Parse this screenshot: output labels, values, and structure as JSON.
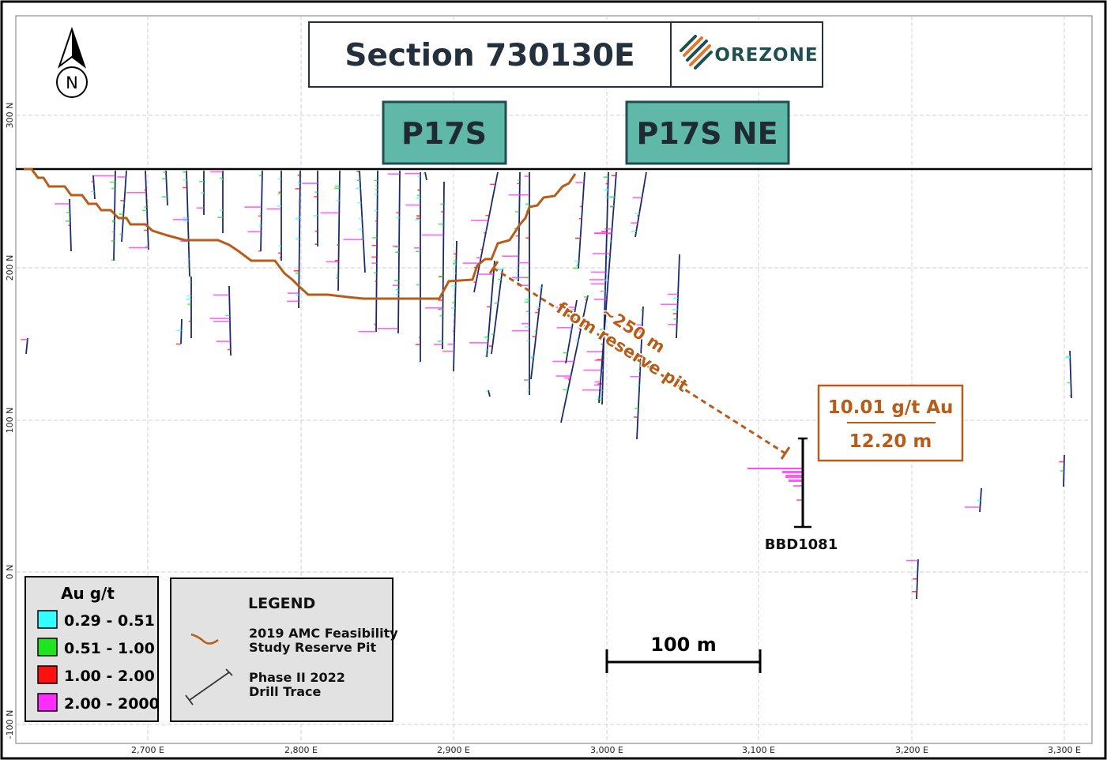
{
  "title": "Section 730130E",
  "company": {
    "name": "OREZONE",
    "colors": {
      "brand": "#1f4f4f",
      "accent": "#e07a2c"
    }
  },
  "zones": [
    {
      "label": "P17S"
    },
    {
      "label": "P17S NE"
    }
  ],
  "north_arrow": {
    "letter": "N"
  },
  "axes": {
    "easting_ticks": [
      "2,700 E",
      "2,800 E",
      "2,900 E",
      "3,000 E",
      "3,100 E",
      "3,200 E",
      "3,300 E"
    ],
    "northing_ticks": [
      "300 N",
      "200 N",
      "100 N",
      "0 N",
      "-100 N"
    ]
  },
  "distance_annotation": {
    "line1": "~250 m",
    "line2": "from reserve pit"
  },
  "highlight_intercept": {
    "grade": "10.01 g/t Au",
    "width": "12.20 m",
    "hole_id": "BBD1081"
  },
  "scale_bar": {
    "label": "100 m"
  },
  "grade_legend": {
    "title": "Au g/t",
    "items": [
      {
        "label": "0.29 - 0.51",
        "color": "#33ffff"
      },
      {
        "label": "0.51 - 1.00",
        "color": "#1ee51e"
      },
      {
        "label": "1.00 - 2.00",
        "color": "#ff1010"
      },
      {
        "label": "2.00 - 2000",
        "color": "#ff2cff"
      }
    ]
  },
  "main_legend": {
    "title": "LEGEND",
    "pit_label_line1": "2019 AMC Feasibility",
    "pit_label_line2": "Study Reserve Pit",
    "drill_label_line1": "Phase II 2022",
    "drill_label_line2": "Drill Trace"
  },
  "colors": {
    "pit": "#b85c1a",
    "drill": "#1a2a6e",
    "zone_fill": "#5fb8a8",
    "zone_border": "#1f4f4f",
    "title_text": "#24313d"
  }
}
